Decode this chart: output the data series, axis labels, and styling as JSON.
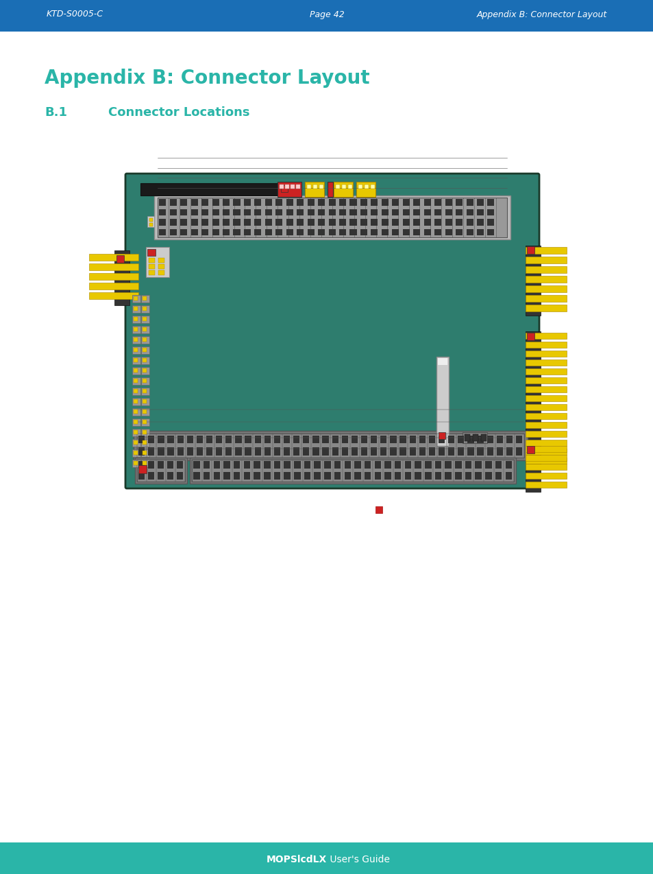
{
  "header_bg": "#1a6eb5",
  "header_text_color": "#ffffff",
  "header_left": "KTD-S0005-C",
  "header_center": "Page 42",
  "header_right": "Appendix B: Connector Layout",
  "footer_bg": "#2ab5a8",
  "footer_bold": "MOPSlcdLX",
  "footer_normal": " User's Guide",
  "footer_text_color": "#ffffff",
  "title_text": "Appendix B: Connector Layout",
  "title_color": "#2ab5a8",
  "subtitle_b1": "B.1",
  "subtitle_rest": "Connector Locations",
  "subtitle_color": "#2ab5a8",
  "board_bg": "#2e7d6e",
  "board_border": "#1a4a3a",
  "page_bg": "#ffffff",
  "yellow": "#e8c800",
  "red": "#cc2222",
  "dark_gray": "#555555",
  "mid_gray": "#888888",
  "light_gray": "#aaaaaa",
  "black": "#111111"
}
